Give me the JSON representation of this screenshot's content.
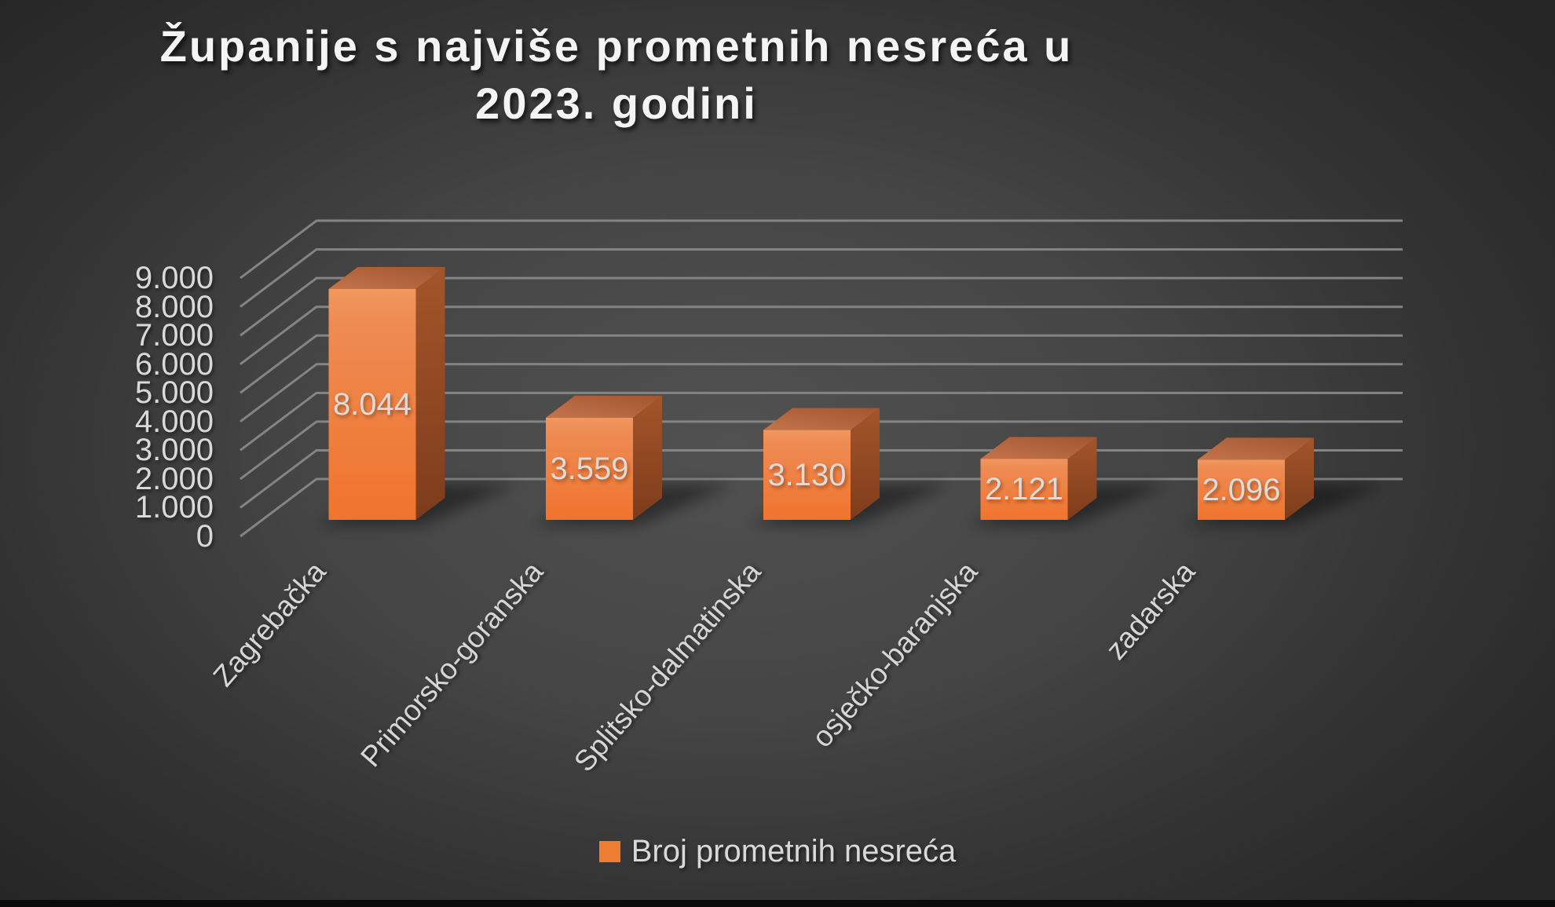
{
  "title": {
    "line1": "Županije s najviše prometnih nesreća u",
    "line2": "2023. godini"
  },
  "legend": {
    "label": "Broj prometnih nesreća"
  },
  "chart_data": {
    "type": "bar",
    "style": "3d-column",
    "title": "Županije s najviše prometnih nesreća u 2023. godini",
    "categories": [
      "Zagrebačka",
      "Primorsko-goranska",
      "Splitsko-dalmatinska",
      "osječko-baranjska",
      "zadarska"
    ],
    "series": [
      {
        "name": "Broj prometnih nesreća",
        "values": [
          8044,
          3559,
          3130,
          2121,
          2096
        ]
      }
    ],
    "data_labels": [
      "8.044",
      "3.559",
      "3.130",
      "2.121",
      "2.096"
    ],
    "xlabel": "",
    "ylabel": "",
    "ylim": [
      0,
      9000
    ],
    "ytick_step": 1000,
    "ytick_labels": [
      "0",
      "1.000",
      "2.000",
      "3.000",
      "4.000",
      "5.000",
      "6.000",
      "7.000",
      "8.000",
      "9.000"
    ],
    "grid": true,
    "legend_position": "bottom"
  },
  "colors": {
    "background_center": "#515151",
    "background_edge": "#262626",
    "gridline": "#848484",
    "text": "#d9d9d9",
    "title_text": "#f4f4f4",
    "legend_swatch": "#ed7d31",
    "bar_front_top": "#f0975f",
    "bar_front_mid": "#ee8b53",
    "bar_front_bottom": "#f0742d",
    "bar_top_front": "#c4744b",
    "bar_top_back": "#a1562f",
    "bar_side_top": "#a45529",
    "bar_side_bottom": "#7e3c1c"
  }
}
